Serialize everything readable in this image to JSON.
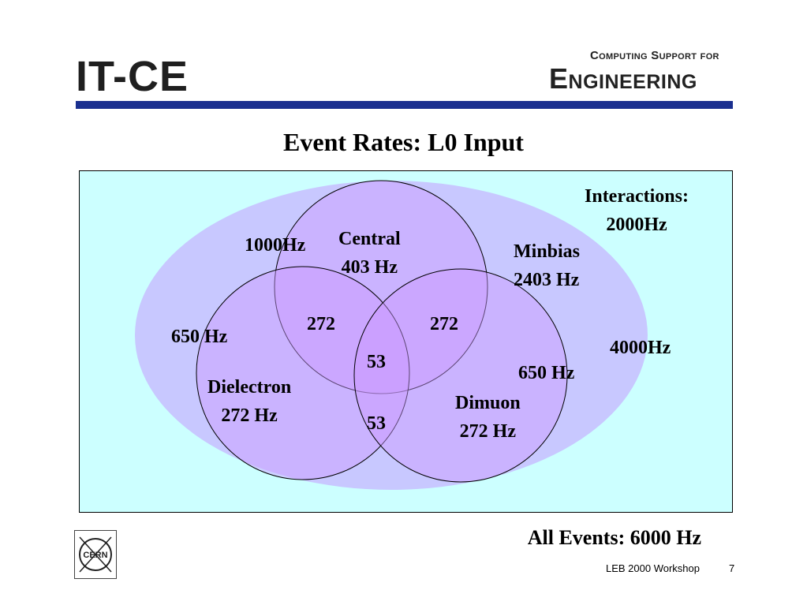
{
  "header": {
    "logo_left": "IT-CE",
    "logo_right_top": "Computing Support for",
    "logo_right_bottom": "Engineering"
  },
  "slide": {
    "title": "Event Rates: L0 Input"
  },
  "diagram": {
    "labels": {
      "interactions": "Interactions:\n2000Hz",
      "four_thousand": "4000Hz",
      "thousand": "1000Hz",
      "central": "Central\n403 Hz",
      "minbias": "Minbias\n2403 Hz",
      "six_fifty_left": "650 Hz",
      "six_fifty_right": "650 Hz",
      "overlap_left": "272",
      "overlap_right": "272",
      "overlap_center": "53",
      "overlap_bottom": "53",
      "dielectron": "Dielectron\n272 Hz",
      "dimuon": "Dimuon\n272 Hz"
    },
    "colors": {
      "background": "#ccffff",
      "ellipse": "#c8c8ff",
      "circles": "#cc99ff"
    }
  },
  "footer": {
    "all_events": "All Events: 6000 Hz",
    "workshop": "LEB 2000 Workshop",
    "page": "7",
    "logo_text": "CERN"
  }
}
